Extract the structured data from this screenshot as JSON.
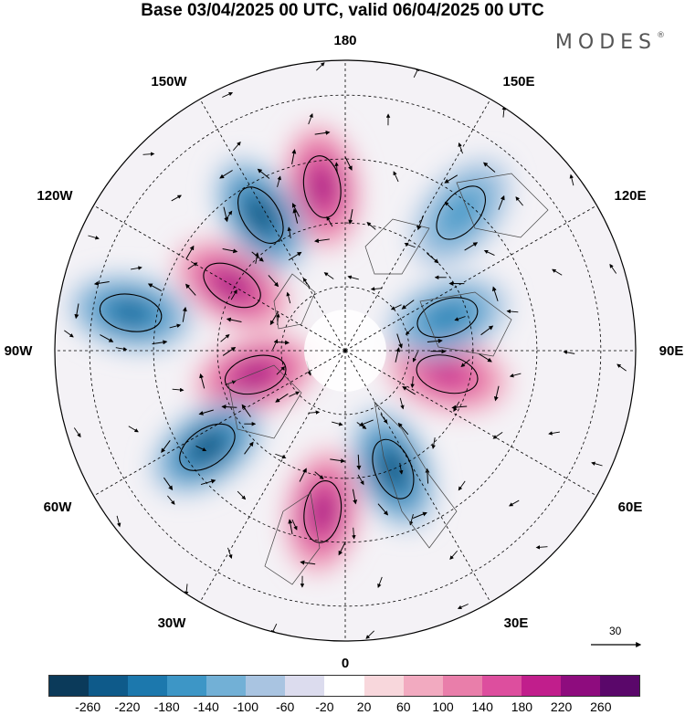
{
  "header": {
    "title": "Base 03/04/2025 00 UTC, valid 06/04/2025 00 UTC",
    "brand": "MODES"
  },
  "map": {
    "projection": "north polar stereographic",
    "longitude_labels": [
      "180",
      "150E",
      "120E",
      "90E",
      "60E",
      "30E",
      "0",
      "30W",
      "60W",
      "90W",
      "120W",
      "150W"
    ],
    "reference_vector": {
      "value": "30"
    }
  },
  "colorbar": {
    "ticks": [
      "-260",
      "-220",
      "-180",
      "-140",
      "-100",
      "-60",
      "-20",
      "20",
      "60",
      "100",
      "140",
      "180",
      "220",
      "260"
    ],
    "colors": [
      "#0b3a5a",
      "#0e5a8a",
      "#1c78ad",
      "#3d96c6",
      "#72b0d6",
      "#a9c4e1",
      "#dcdcee",
      "#ffffff",
      "#f8d7dc",
      "#f2aac0",
      "#e97eaa",
      "#dd4e9e",
      "#c11e8c",
      "#8e0c7e",
      "#5a076a"
    ]
  },
  "anomalies": [
    {
      "id": "high-canada",
      "lon": -75,
      "r": 0.32,
      "sign": "positive",
      "level": 4
    },
    {
      "id": "low-greenland-west",
      "lon": -55,
      "r": 0.58,
      "sign": "negative",
      "level": 5
    },
    {
      "id": "high-atlantic",
      "lon": -8,
      "r": 0.56,
      "sign": "positive",
      "level": 4
    },
    {
      "id": "low-europe",
      "lon": 22,
      "r": 0.44,
      "sign": "negative",
      "level": 5
    },
    {
      "id": "high-siberia",
      "lon": 77,
      "r": 0.36,
      "sign": "positive",
      "level": 3
    },
    {
      "id": "low-asia",
      "lon": 108,
      "r": 0.37,
      "sign": "negative",
      "level": 3
    },
    {
      "id": "low-pacific-east",
      "lon": 140,
      "r": 0.62,
      "sign": "negative",
      "level": 2
    },
    {
      "id": "high-bering",
      "lon": -172,
      "r": 0.57,
      "sign": "positive",
      "level": 4
    },
    {
      "id": "low-alaska",
      "lon": -148,
      "r": 0.55,
      "sign": "negative",
      "level": 5
    },
    {
      "id": "high-nw-canada",
      "lon": -120,
      "r": 0.45,
      "sign": "positive",
      "level": 4
    },
    {
      "id": "low-pacific-northwest",
      "lon": -100,
      "r": 0.75,
      "sign": "negative",
      "level": 4
    }
  ]
}
